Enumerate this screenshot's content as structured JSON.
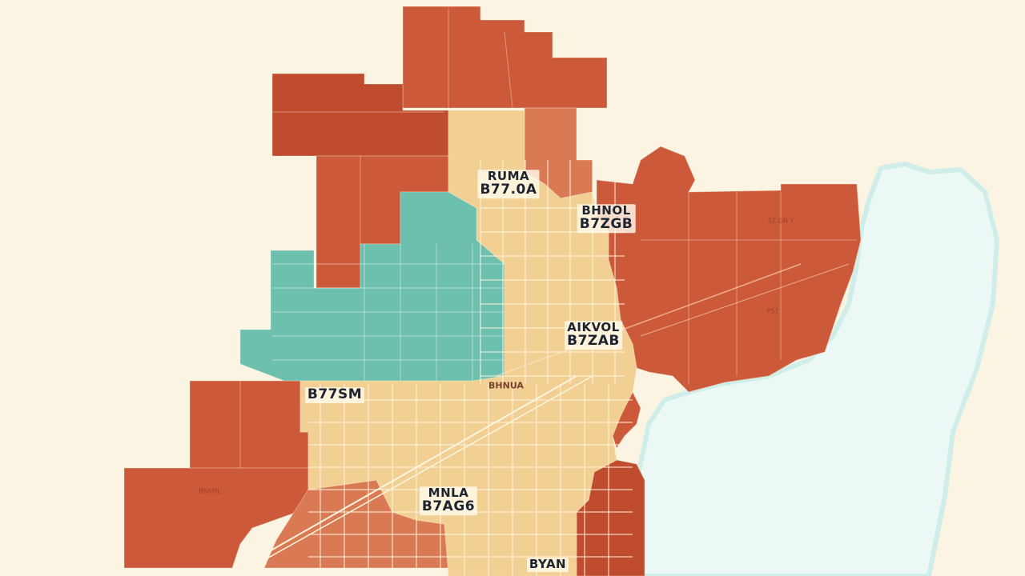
{
  "map": {
    "colors": {
      "background": "#fbf4e3",
      "water": "#ecf8f6",
      "shore": "#cfeee9",
      "red": "#cc5a3a",
      "red_dark": "#bf4c2e",
      "red_light": "#d97a55",
      "tan": "#f2cf92",
      "teal": "#6dbfae",
      "grid": "#fff5e0"
    },
    "labels": [
      {
        "id": "north",
        "line1": "RUMA",
        "line2": "B77.0A"
      },
      {
        "id": "northeast",
        "line1": "BHNOL",
        "line2": "B7ZGB"
      },
      {
        "id": "central-east",
        "line1": "AIKVOL",
        "line2": "B7ZAB"
      },
      {
        "id": "west",
        "line1": "",
        "line2": "B77SM"
      },
      {
        "id": "south",
        "line1": "MNLA",
        "line2": "B7AG6"
      },
      {
        "id": "far-south",
        "line1": "BYAN",
        "line2": ""
      }
    ],
    "faint_labels": [
      {
        "id": "east-faint-1",
        "text": "3Z.GN Y"
      },
      {
        "id": "east-faint-2",
        "text": "P51"
      },
      {
        "id": "southwest-faint",
        "text": "BRAML"
      },
      {
        "id": "center-small",
        "text": "BHNUA"
      }
    ]
  }
}
